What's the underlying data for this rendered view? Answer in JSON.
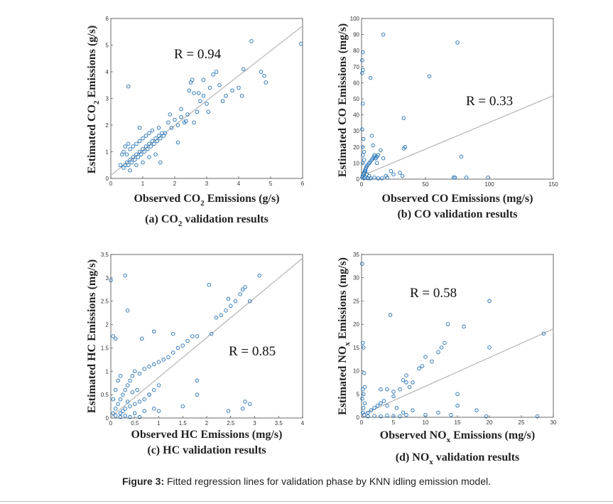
{
  "colors": {
    "marker": "#1f6fb4",
    "fit_line": "#b5b5b5",
    "axis": "#444444"
  },
  "figure_caption": {
    "label": "Figure 3:",
    "text": " Fitted regression lines for validation phase by KNN idling emission model."
  },
  "chart_data": [
    {
      "type": "scatter",
      "id": "co2",
      "caption": {
        "pre": "(a) CO",
        "sub": "2",
        "post": " validation results"
      },
      "xlabel": {
        "pre": "Observed CO",
        "sub": "2",
        "post": " Emissions (g/s)"
      },
      "ylabel": {
        "pre": "Estimated CO",
        "sub": "2",
        "post": " Emissions (g/s)"
      },
      "r_label": "R = 0.94",
      "xlim": [
        0,
        6
      ],
      "ylim": [
        0,
        6
      ],
      "xticks": [
        "0",
        "1",
        "2",
        "3",
        "4",
        "5",
        "6"
      ],
      "yticks": [
        "0",
        "1",
        "2",
        "3",
        "4",
        "5",
        "6"
      ],
      "fit": {
        "x": [
          0,
          6
        ],
        "y": [
          0.12,
          5.72
        ]
      },
      "points": [
        [
          0.4,
          0.4
        ],
        [
          0.45,
          0.5
        ],
        [
          0.5,
          0.6
        ],
        [
          0.55,
          0.5
        ],
        [
          0.6,
          0.7
        ],
        [
          0.65,
          0.6
        ],
        [
          0.7,
          0.8
        ],
        [
          0.75,
          0.7
        ],
        [
          0.8,
          0.9
        ],
        [
          0.85,
          0.8
        ],
        [
          0.9,
          1.0
        ],
        [
          0.95,
          0.9
        ],
        [
          1.0,
          1.1
        ],
        [
          1.05,
          1.0
        ],
        [
          1.1,
          1.2
        ],
        [
          1.15,
          1.1
        ],
        [
          1.2,
          1.3
        ],
        [
          1.25,
          1.2
        ],
        [
          1.3,
          1.4
        ],
        [
          1.35,
          1.3
        ],
        [
          1.4,
          1.5
        ],
        [
          1.45,
          1.4
        ],
        [
          1.5,
          1.6
        ],
        [
          1.55,
          1.5
        ],
        [
          1.6,
          1.7
        ],
        [
          1.65,
          1.6
        ],
        [
          1.7,
          1.7
        ],
        [
          0.5,
          0.9
        ],
        [
          0.6,
          1.1
        ],
        [
          0.7,
          1.2
        ],
        [
          0.8,
          1.3
        ],
        [
          0.9,
          1.4
        ],
        [
          1.0,
          1.5
        ],
        [
          1.1,
          1.6
        ],
        [
          1.2,
          1.7
        ],
        [
          0.6,
          0.3
        ],
        [
          0.8,
          0.5
        ],
        [
          1.0,
          0.6
        ],
        [
          1.2,
          0.8
        ],
        [
          1.4,
          0.9
        ],
        [
          0.4,
          1.0
        ],
        [
          0.35,
          0.9
        ],
        [
          0.3,
          0.5
        ],
        [
          0.45,
          1.2
        ],
        [
          0.55,
          1.3
        ],
        [
          1.3,
          1.8
        ],
        [
          1.5,
          1.9
        ],
        [
          0.9,
          1.9
        ],
        [
          0.55,
          3.45
        ],
        [
          1.55,
          0.6
        ],
        [
          1.8,
          2.1
        ],
        [
          1.9,
          1.9
        ],
        [
          2.0,
          2.2
        ],
        [
          2.1,
          2.0
        ],
        [
          2.2,
          2.3
        ],
        [
          2.3,
          2.1
        ],
        [
          2.4,
          2.4
        ],
        [
          2.45,
          3.3
        ],
        [
          2.5,
          3.6
        ],
        [
          2.55,
          3.7
        ],
        [
          2.6,
          3.2
        ],
        [
          2.7,
          2.5
        ],
        [
          2.8,
          2.9
        ],
        [
          2.9,
          3.1
        ],
        [
          3.0,
          2.8
        ],
        [
          3.1,
          3.4
        ],
        [
          3.2,
          3.9
        ],
        [
          3.3,
          4.0
        ],
        [
          3.4,
          3.5
        ],
        [
          3.5,
          2.9
        ],
        [
          3.6,
          3.1
        ],
        [
          3.8,
          3.3
        ],
        [
          4.0,
          3.4
        ],
        [
          4.1,
          3.1
        ],
        [
          4.15,
          4.1
        ],
        [
          4.4,
          5.15
        ],
        [
          4.7,
          4.0
        ],
        [
          4.8,
          3.85
        ],
        [
          4.85,
          3.6
        ],
        [
          5.95,
          5.05
        ],
        [
          2.35,
          2.15
        ],
        [
          2.1,
          1.35
        ],
        [
          2.6,
          2.1
        ],
        [
          3.05,
          2.5
        ],
        [
          2.2,
          2.6
        ],
        [
          1.85,
          2.4
        ],
        [
          2.9,
          3.7
        ],
        [
          2.75,
          3.2
        ]
      ]
    },
    {
      "type": "scatter",
      "id": "co",
      "caption": {
        "pre": "(b) CO validation results",
        "sub": "",
        "post": ""
      },
      "xlabel": {
        "pre": "Observed CO Emissions (mg/s)",
        "sub": "",
        "post": ""
      },
      "ylabel": {
        "pre": "Estimated CO Emissions (mg/s)",
        "sub": "",
        "post": ""
      },
      "r_label": "R = 0.33",
      "xlim": [
        0,
        150
      ],
      "ylim": [
        0,
        100
      ],
      "xticks": [
        "0",
        "50",
        "100",
        "150"
      ],
      "yticks": [
        "0",
        "10",
        "20",
        "30",
        "40",
        "50",
        "60",
        "70",
        "80",
        "90",
        "100"
      ],
      "fit": {
        "x": [
          0,
          150
        ],
        "y": [
          2.0,
          52.0
        ]
      },
      "points": [
        [
          0.5,
          1
        ],
        [
          1,
          2
        ],
        [
          1.5,
          3
        ],
        [
          2,
          4
        ],
        [
          2.5,
          5
        ],
        [
          3,
          6
        ],
        [
          3.5,
          7
        ],
        [
          4,
          8
        ],
        [
          5,
          9
        ],
        [
          6,
          10
        ],
        [
          7,
          11
        ],
        [
          8,
          12
        ],
        [
          9,
          13
        ],
        [
          10,
          14
        ],
        [
          11,
          13
        ],
        [
          12,
          14
        ],
        [
          13,
          15
        ],
        [
          1,
          10
        ],
        [
          2,
          12
        ],
        [
          1,
          15
        ],
        [
          2,
          17
        ],
        [
          1,
          20
        ],
        [
          1.5,
          25
        ],
        [
          0.5,
          31
        ],
        [
          1,
          47
        ],
        [
          0.5,
          66
        ],
        [
          1,
          68
        ],
        [
          0.5,
          74
        ],
        [
          1,
          79
        ],
        [
          8,
          27
        ],
        [
          9,
          21
        ],
        [
          10,
          15
        ],
        [
          11,
          13
        ],
        [
          12,
          10
        ],
        [
          15,
          18
        ],
        [
          17,
          13
        ],
        [
          19,
          2
        ],
        [
          20,
          1
        ],
        [
          23,
          5
        ],
        [
          25,
          3
        ],
        [
          30,
          4
        ],
        [
          32,
          2
        ],
        [
          33,
          19
        ],
        [
          34,
          20
        ],
        [
          33,
          38
        ],
        [
          53,
          64
        ],
        [
          72,
          1
        ],
        [
          73,
          1
        ],
        [
          75,
          85
        ],
        [
          78,
          14
        ],
        [
          82,
          1
        ],
        [
          99,
          1
        ],
        [
          7,
          63
        ],
        [
          17,
          90
        ],
        [
          3,
          1
        ],
        [
          5,
          0.5
        ],
        [
          7,
          0.5
        ],
        [
          10,
          1
        ],
        [
          13,
          0.5
        ],
        [
          16,
          0.5
        ],
        [
          2,
          0.5
        ],
        [
          4,
          3
        ],
        [
          6,
          2
        ],
        [
          3,
          5
        ]
      ]
    },
    {
      "type": "scatter",
      "id": "hc",
      "caption": {
        "pre": "(c) HC validation results",
        "sub": "",
        "post": ""
      },
      "xlabel": {
        "pre": "Observed HC Emissions (mg/s)",
        "sub": "",
        "post": ""
      },
      "ylabel": {
        "pre": "Estimated HC Emissions (mg/s)",
        "sub": "",
        "post": ""
      },
      "r_label": "R = 0.85",
      "xlim": [
        0,
        4
      ],
      "ylim": [
        0,
        3.5
      ],
      "xticks": [
        "0",
        "0.5",
        "1",
        "1.5",
        "2",
        "2.5",
        "3",
        "3.5",
        "4"
      ],
      "yticks": [
        "0",
        "0.5",
        "1",
        "1.5",
        "2",
        "2.5",
        "3",
        "3.5"
      ],
      "fit": {
        "x": [
          0,
          4
        ],
        "y": [
          0.02,
          3.42
        ]
      },
      "points": [
        [
          0.05,
          0.1
        ],
        [
          0.1,
          0.2
        ],
        [
          0.15,
          0.3
        ],
        [
          0.2,
          0.4
        ],
        [
          0.25,
          0.5
        ],
        [
          0.3,
          0.6
        ],
        [
          0.35,
          0.7
        ],
        [
          0.4,
          0.8
        ],
        [
          0.45,
          0.9
        ],
        [
          0.5,
          1.0
        ],
        [
          0.05,
          0.4
        ],
        [
          0.1,
          0.6
        ],
        [
          0.15,
          0.8
        ],
        [
          0.2,
          0.9
        ],
        [
          0.1,
          0.05
        ],
        [
          0.2,
          0.1
        ],
        [
          0.3,
          0.2
        ],
        [
          0.4,
          0.25
        ],
        [
          0.5,
          0.3
        ],
        [
          0.6,
          0.35
        ],
        [
          0.7,
          0.4
        ],
        [
          0.8,
          0.5
        ],
        [
          0.9,
          0.6
        ],
        [
          1.0,
          0.7
        ],
        [
          0.3,
          0.05
        ],
        [
          0.5,
          0.1
        ],
        [
          0.7,
          0.15
        ],
        [
          0.9,
          0.2
        ],
        [
          0.6,
          0.95
        ],
        [
          0.7,
          1.05
        ],
        [
          0.8,
          1.1
        ],
        [
          0.9,
          1.15
        ],
        [
          1.0,
          1.2
        ],
        [
          1.1,
          1.25
        ],
        [
          1.2,
          1.3
        ],
        [
          1.3,
          1.4
        ],
        [
          1.4,
          1.5
        ],
        [
          1.5,
          1.55
        ],
        [
          1.6,
          1.65
        ],
        [
          1.7,
          1.75
        ],
        [
          1.8,
          1.75
        ],
        [
          2.2,
          2.15
        ],
        [
          2.3,
          2.2
        ],
        [
          2.4,
          2.3
        ],
        [
          2.5,
          2.4
        ],
        [
          2.6,
          2.5
        ],
        [
          2.7,
          2.65
        ],
        [
          2.8,
          2.8
        ],
        [
          2.75,
          2.75
        ],
        [
          2.45,
          2.55
        ],
        [
          0.05,
          1.75
        ],
        [
          0.1,
          1.7
        ],
        [
          0.0,
          2.95
        ],
        [
          0.3,
          3.05
        ],
        [
          0.35,
          2.3
        ],
        [
          0.65,
          1.7
        ],
        [
          0.9,
          1.85
        ],
        [
          1.3,
          1.8
        ],
        [
          2.05,
          2.85
        ],
        [
          2.1,
          1.8
        ],
        [
          3.1,
          3.05
        ],
        [
          2.9,
          2.5
        ],
        [
          1.8,
          0.8
        ],
        [
          1.8,
          0.5
        ],
        [
          2.45,
          0.15
        ],
        [
          2.75,
          0.2
        ],
        [
          2.8,
          0.35
        ],
        [
          2.9,
          0.3
        ],
        [
          1.0,
          0.15
        ],
        [
          1.5,
          0.25
        ],
        [
          0.4,
          0.02
        ],
        [
          0.2,
          0.02
        ],
        [
          0.6,
          0.02
        ],
        [
          0.8,
          0.5
        ],
        [
          0.25,
          0.15
        ],
        [
          0.35,
          0.35
        ],
        [
          0.45,
          0.55
        ],
        [
          0.55,
          0.6
        ]
      ]
    },
    {
      "type": "scatter",
      "id": "nox",
      "caption": {
        "pre": "(d) NO",
        "sub": "x",
        "post": " validation results"
      },
      "xlabel": {
        "pre": "Observed NO",
        "sub": "x",
        "post": " Emissions (mg/s)"
      },
      "ylabel": {
        "pre": "Estimated NO",
        "sub": "x",
        "post": " Emissions (mg/s)"
      },
      "r_label": "R = 0.58",
      "xlim": [
        0,
        30
      ],
      "ylim": [
        0,
        35
      ],
      "xticks": [
        "0",
        "5",
        "10",
        "15",
        "20",
        "25",
        "30"
      ],
      "yticks": [
        "0",
        "5",
        "10",
        "15",
        "20",
        "25",
        "30",
        "35"
      ],
      "fit": {
        "x": [
          0,
          30
        ],
        "y": [
          0.5,
          19.0
        ]
      },
      "points": [
        [
          0.1,
          33
        ],
        [
          0.2,
          16
        ],
        [
          0.3,
          15
        ],
        [
          0.4,
          9.5
        ],
        [
          0.5,
          6.5
        ],
        [
          0.2,
          6
        ],
        [
          0.3,
          5
        ],
        [
          0.1,
          4
        ],
        [
          0.5,
          3
        ],
        [
          0.3,
          2
        ],
        [
          0.2,
          1
        ],
        [
          0.4,
          0.5
        ],
        [
          1,
          1
        ],
        [
          1.5,
          1.5
        ],
        [
          2,
          2
        ],
        [
          2.5,
          2.5
        ],
        [
          3,
          3
        ],
        [
          3.5,
          3.5
        ],
        [
          4,
          2.5
        ],
        [
          1,
          0.2
        ],
        [
          2,
          0.3
        ],
        [
          3,
          0.2
        ],
        [
          4,
          0.4
        ],
        [
          5,
          0.3
        ],
        [
          6,
          0.2
        ],
        [
          4.5,
          22
        ],
        [
          3,
          6
        ],
        [
          4,
          6
        ],
        [
          5,
          5.5
        ],
        [
          5,
          4.5
        ],
        [
          6,
          6
        ],
        [
          6.5,
          8
        ],
        [
          7,
          9
        ],
        [
          7,
          7.5
        ],
        [
          7.5,
          6.5
        ],
        [
          8,
          7.5
        ],
        [
          9,
          10.5
        ],
        [
          9.5,
          11
        ],
        [
          10,
          13
        ],
        [
          11,
          12
        ],
        [
          12,
          14
        ],
        [
          12.5,
          15
        ],
        [
          13,
          16
        ],
        [
          13.5,
          20
        ],
        [
          15,
          5
        ],
        [
          15,
          2.5
        ],
        [
          16,
          19.5
        ],
        [
          18,
          1.5
        ],
        [
          20,
          25
        ],
        [
          20,
          15
        ],
        [
          19.5,
          0.2
        ],
        [
          27.5,
          0.2
        ],
        [
          28.5,
          18
        ],
        [
          5.5,
          2
        ],
        [
          6.5,
          1
        ],
        [
          7,
          0.5
        ],
        [
          8,
          1.5
        ],
        [
          10,
          0.5
        ],
        [
          12,
          1
        ],
        [
          14,
          0.5
        ]
      ]
    }
  ]
}
